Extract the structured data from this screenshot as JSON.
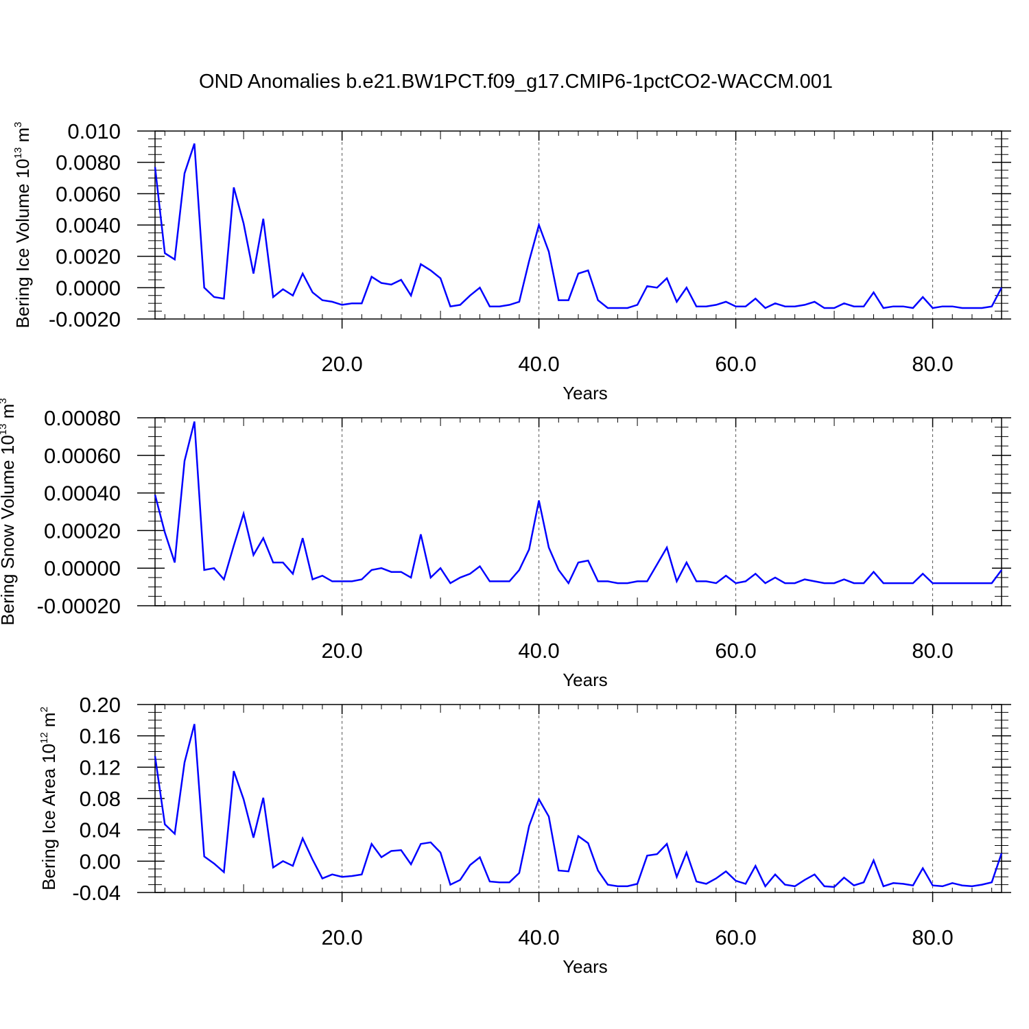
{
  "title": "OND Anomalies b.e21.BW1PCT.f09_g17.CMIP6-1pctCO2-WACCM.001",
  "colors": {
    "line": "#0000ff",
    "axis": "#000000",
    "grid": "#555555"
  },
  "chart_data": [
    {
      "type": "line",
      "ylabel": {
        "text": "Bering Ice Volume 10",
        "sup": "13",
        "unit": " m",
        "unit_sup": "3"
      },
      "xlabel": "Years",
      "xlim": [
        1,
        87
      ],
      "ylim": [
        -0.002,
        0.01
      ],
      "xticks": [
        20,
        40,
        60,
        80
      ],
      "xtick_labels": [
        "20.0",
        "40.0",
        "60.0",
        "80.0"
      ],
      "yticks": [
        0.01,
        0.008,
        0.006,
        0.004,
        0.002,
        0.0,
        -0.002
      ],
      "ytick_labels": [
        "0.010",
        "0.0080",
        "0.0060",
        "0.0040",
        "0.0020",
        "0.0000",
        "-0.0020"
      ],
      "grid": "vertical-dashed",
      "x": [
        1,
        2,
        3,
        4,
        5,
        6,
        7,
        8,
        9,
        10,
        11,
        12,
        13,
        14,
        15,
        16,
        17,
        18,
        19,
        20,
        21,
        22,
        23,
        24,
        25,
        26,
        27,
        28,
        29,
        30,
        31,
        32,
        33,
        34,
        35,
        36,
        37,
        38,
        39,
        40,
        41,
        42,
        43,
        44,
        45,
        46,
        47,
        48,
        49,
        50,
        51,
        52,
        53,
        54,
        55,
        56,
        57,
        58,
        59,
        60,
        61,
        62,
        63,
        64,
        65,
        66,
        67,
        68,
        69,
        70,
        71,
        72,
        73,
        74,
        75,
        76,
        77,
        78,
        79,
        80,
        81,
        82,
        83,
        84,
        85,
        86,
        87
      ],
      "values": [
        0.0077,
        0.0022,
        0.0018,
        0.0073,
        0.0092,
        0.0,
        -0.0006,
        -0.0007,
        0.0064,
        0.0041,
        0.0009,
        0.0044,
        -0.0006,
        -0.0001,
        -0.0005,
        0.0009,
        -0.0003,
        -0.0008,
        -0.0009,
        -0.0011,
        -0.001,
        -0.001,
        0.0007,
        0.0003,
        0.0002,
        0.0005,
        -0.0005,
        0.0015,
        0.0011,
        0.0006,
        -0.0012,
        -0.0011,
        -0.0005,
        0.0,
        -0.0012,
        -0.0012,
        -0.0011,
        -0.0009,
        0.0017,
        0.004,
        0.0023,
        -0.0008,
        -0.0008,
        0.0009,
        0.0011,
        -0.0008,
        -0.0013,
        -0.0013,
        -0.0013,
        -0.0011,
        0.0001,
        0.0,
        0.0006,
        -0.0009,
        0.0,
        -0.0012,
        -0.0012,
        -0.0011,
        -0.0009,
        -0.0012,
        -0.0012,
        -0.0007,
        -0.0013,
        -0.001,
        -0.0012,
        -0.0012,
        -0.0011,
        -0.0009,
        -0.0013,
        -0.0013,
        -0.001,
        -0.0012,
        -0.0012,
        -0.0003,
        -0.0013,
        -0.0012,
        -0.0012,
        -0.0013,
        -0.0006,
        -0.0013,
        -0.0012,
        -0.0012,
        -0.0013,
        -0.0013,
        -0.0013,
        -0.0012,
        0.0
      ]
    },
    {
      "type": "line",
      "ylabel": {
        "text": "Bering Snow Volume 10",
        "sup": "13",
        "unit": " m",
        "unit_sup": "3"
      },
      "xlabel": "Years",
      "xlim": [
        1,
        87
      ],
      "ylim": [
        -0.0002,
        0.0008
      ],
      "xticks": [
        20,
        40,
        60,
        80
      ],
      "xtick_labels": [
        "20.0",
        "40.0",
        "60.0",
        "80.0"
      ],
      "yticks": [
        0.0008,
        0.0006,
        0.0004,
        0.0002,
        0.0,
        -0.0002
      ],
      "ytick_labels": [
        "0.00080",
        "0.00060",
        "0.00040",
        "0.00020",
        "0.00000",
        "-0.00020"
      ],
      "grid": "vertical-dashed",
      "x": [
        1,
        2,
        3,
        4,
        5,
        6,
        7,
        8,
        9,
        10,
        11,
        12,
        13,
        14,
        15,
        16,
        17,
        18,
        19,
        20,
        21,
        22,
        23,
        24,
        25,
        26,
        27,
        28,
        29,
        30,
        31,
        32,
        33,
        34,
        35,
        36,
        37,
        38,
        39,
        40,
        41,
        42,
        43,
        44,
        45,
        46,
        47,
        48,
        49,
        50,
        51,
        52,
        53,
        54,
        55,
        56,
        57,
        58,
        59,
        60,
        61,
        62,
        63,
        64,
        65,
        66,
        67,
        68,
        69,
        70,
        71,
        72,
        73,
        74,
        75,
        76,
        77,
        78,
        79,
        80,
        81,
        82,
        83,
        84,
        85,
        86,
        87
      ],
      "values": [
        0.00039,
        0.00019,
        3e-05,
        0.00057,
        0.00078,
        -1e-05,
        0.0,
        -6e-05,
        0.00012,
        0.00029,
        7e-05,
        0.00016,
        3e-05,
        3e-05,
        -3e-05,
        0.00016,
        -6e-05,
        -4e-05,
        -7e-05,
        -7e-05,
        -7e-05,
        -6e-05,
        -1e-05,
        0.0,
        -2e-05,
        -2e-05,
        -5e-05,
        0.00018,
        -5e-05,
        0.0,
        -8e-05,
        -5e-05,
        -3e-05,
        1e-05,
        -7e-05,
        -7e-05,
        -7e-05,
        -1e-05,
        0.0001,
        0.00036,
        0.00011,
        -1e-05,
        -8e-05,
        3e-05,
        4e-05,
        -7e-05,
        -7e-05,
        -8e-05,
        -8e-05,
        -7e-05,
        -7e-05,
        2e-05,
        0.00011,
        -7e-05,
        3e-05,
        -7e-05,
        -7e-05,
        -8e-05,
        -4e-05,
        -8e-05,
        -7e-05,
        -3e-05,
        -8e-05,
        -5e-05,
        -8e-05,
        -8e-05,
        -6e-05,
        -7e-05,
        -8e-05,
        -8e-05,
        -6e-05,
        -8e-05,
        -8e-05,
        -2e-05,
        -8e-05,
        -8e-05,
        -8e-05,
        -8e-05,
        -3e-05,
        -8e-05,
        -8e-05,
        -8e-05,
        -8e-05,
        -8e-05,
        -8e-05,
        -8e-05,
        -1e-05
      ]
    },
    {
      "type": "line",
      "ylabel": {
        "text": "Bering Ice Area 10",
        "sup": "12",
        "unit": " m",
        "unit_sup": "2"
      },
      "xlabel": "Years",
      "xlim": [
        1,
        87
      ],
      "ylim": [
        -0.04,
        0.2
      ],
      "xticks": [
        20,
        40,
        60,
        80
      ],
      "xtick_labels": [
        "20.0",
        "40.0",
        "60.0",
        "80.0"
      ],
      "yticks": [
        0.2,
        0.16,
        0.12,
        0.08,
        0.04,
        0.0,
        -0.04
      ],
      "ytick_labels": [
        "0.20",
        "0.16",
        "0.12",
        "0.08",
        "0.04",
        "0.00",
        "-0.04"
      ],
      "grid": "vertical-dashed",
      "x": [
        1,
        2,
        3,
        4,
        5,
        6,
        7,
        8,
        9,
        10,
        11,
        12,
        13,
        14,
        15,
        16,
        17,
        18,
        19,
        20,
        21,
        22,
        23,
        24,
        25,
        26,
        27,
        28,
        29,
        30,
        31,
        32,
        33,
        34,
        35,
        36,
        37,
        38,
        39,
        40,
        41,
        42,
        43,
        44,
        45,
        46,
        47,
        48,
        49,
        50,
        51,
        52,
        53,
        54,
        55,
        56,
        57,
        58,
        59,
        60,
        61,
        62,
        63,
        64,
        65,
        66,
        67,
        68,
        69,
        70,
        71,
        72,
        73,
        74,
        75,
        76,
        77,
        78,
        79,
        80,
        81,
        82,
        83,
        84,
        85,
        86,
        87
      ],
      "values": [
        0.134,
        0.047,
        0.035,
        0.126,
        0.175,
        0.006,
        -0.003,
        -0.014,
        0.115,
        0.079,
        0.03,
        0.081,
        -0.008,
        0.0,
        -0.006,
        0.029,
        0.002,
        -0.022,
        -0.017,
        -0.02,
        -0.019,
        -0.017,
        0.022,
        0.005,
        0.013,
        0.014,
        -0.004,
        0.022,
        0.024,
        0.011,
        -0.03,
        -0.024,
        -0.005,
        0.005,
        -0.026,
        -0.027,
        -0.027,
        -0.015,
        0.045,
        0.079,
        0.057,
        -0.012,
        -0.013,
        0.032,
        0.023,
        -0.012,
        -0.03,
        -0.032,
        -0.032,
        -0.029,
        0.007,
        0.009,
        0.022,
        -0.02,
        0.011,
        -0.026,
        -0.029,
        -0.022,
        -0.013,
        -0.025,
        -0.029,
        -0.006,
        -0.032,
        -0.017,
        -0.03,
        -0.032,
        -0.024,
        -0.017,
        -0.032,
        -0.033,
        -0.021,
        -0.031,
        -0.027,
        0.001,
        -0.032,
        -0.028,
        -0.029,
        -0.031,
        -0.009,
        -0.031,
        -0.032,
        -0.028,
        -0.031,
        -0.032,
        -0.03,
        -0.027,
        0.01
      ]
    }
  ]
}
